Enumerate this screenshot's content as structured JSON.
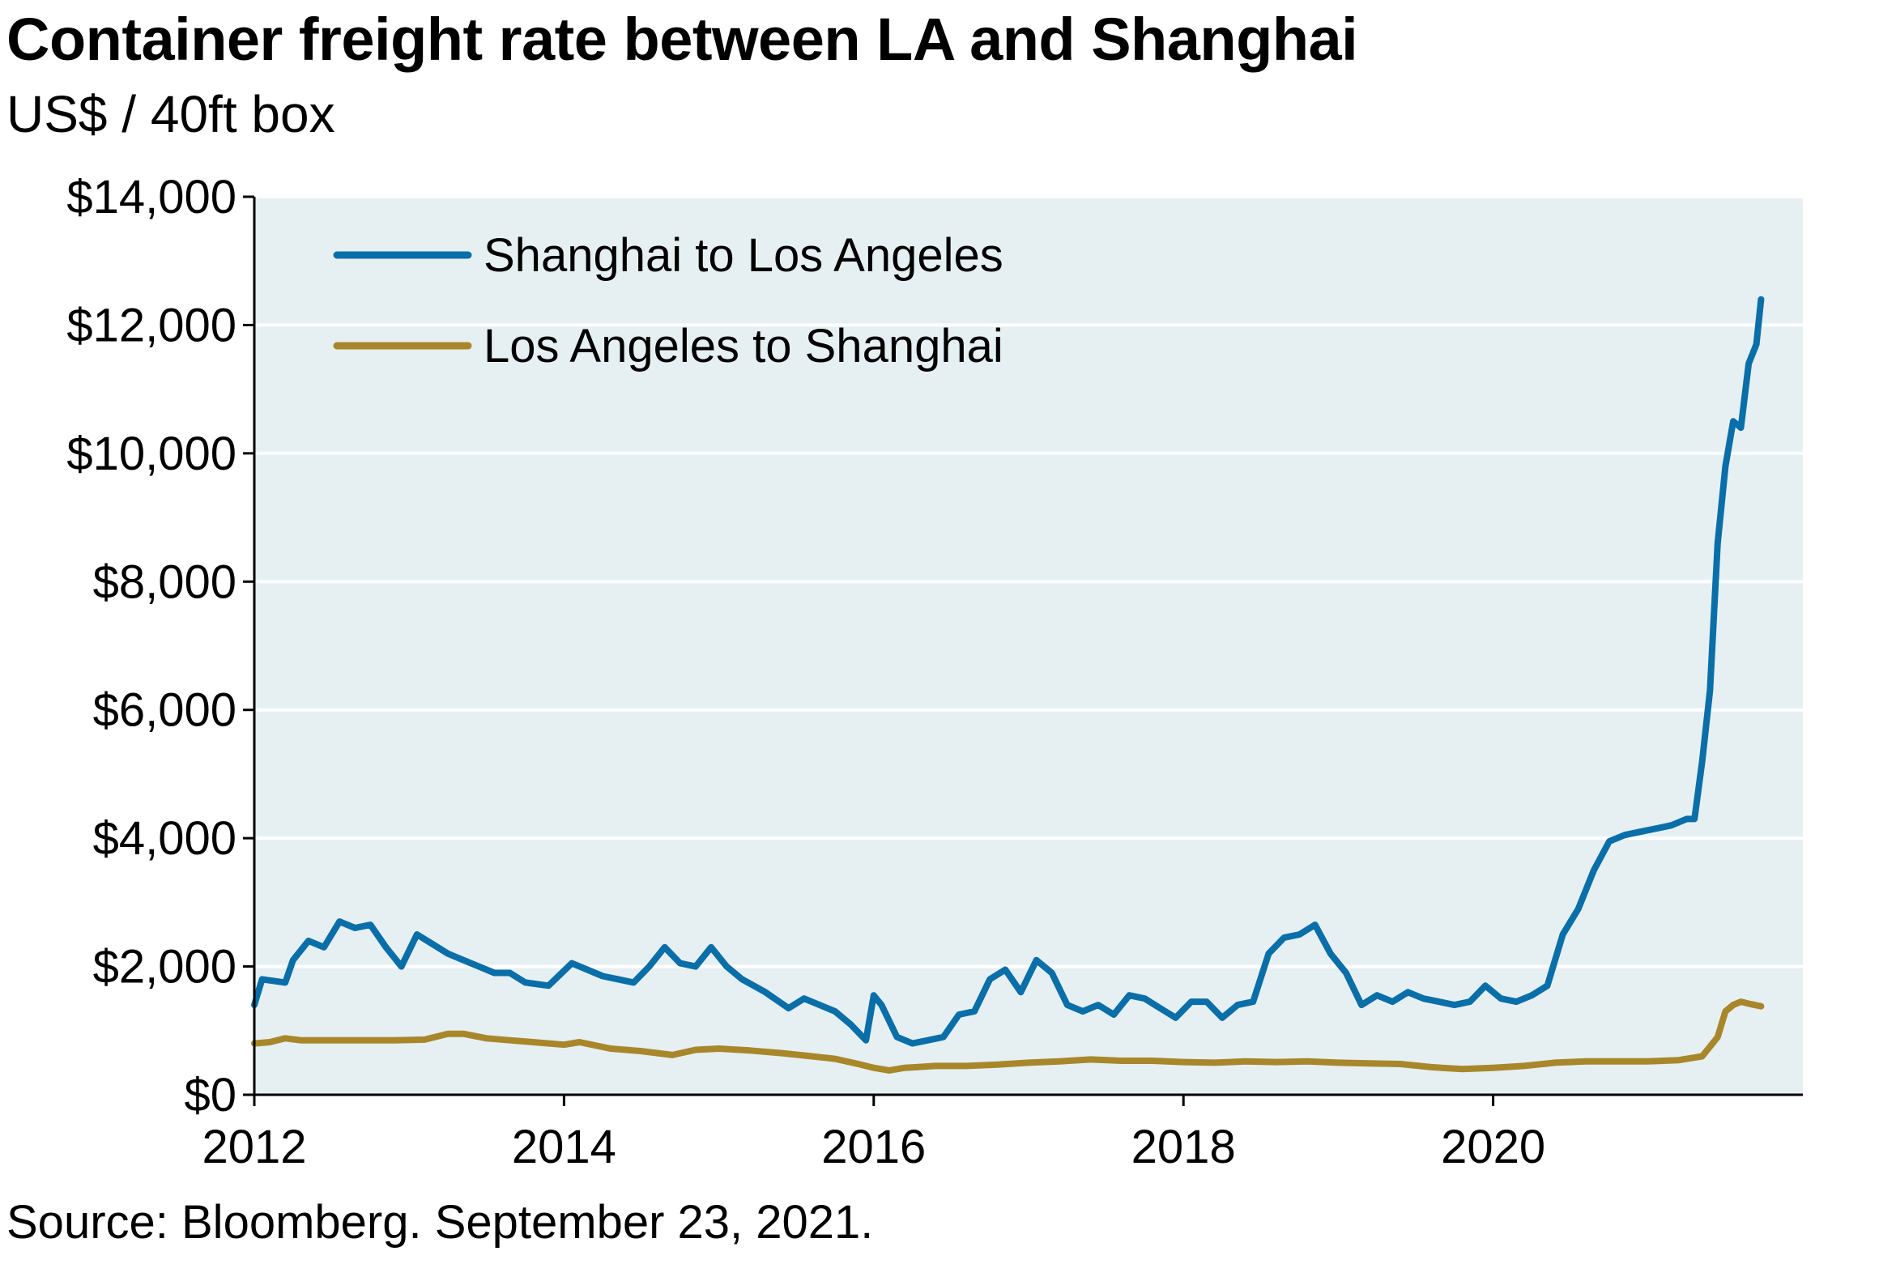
{
  "chart_data": {
    "type": "line",
    "title": "Container freight rate between LA and Shanghai",
    "subtitle": "US$ / 40ft box",
    "source": "Source: Bloomberg. September 23, 2021.",
    "xlabel": "",
    "ylabel": "",
    "xlim": [
      2012.0,
      2022.0
    ],
    "ylim": [
      0,
      14000
    ],
    "x_ticks": [
      2012,
      2014,
      2016,
      2018,
      2020
    ],
    "x_tick_labels": [
      "2012",
      "2014",
      "2016",
      "2018",
      "2020"
    ],
    "y_ticks": [
      0,
      2000,
      4000,
      6000,
      8000,
      10000,
      12000,
      14000
    ],
    "y_tick_labels": [
      "$0",
      "$2,000",
      "$4,000",
      "$6,000",
      "$8,000",
      "$10,000",
      "$12,000",
      "$14,000"
    ],
    "grid": "horizontal",
    "legend_position": "top-left",
    "colors": {
      "plot_background": "#e6f0f3",
      "grid": "#ffffff"
    },
    "series": [
      {
        "name": "Shanghai to Los Angeles",
        "color": "#0a6fa8",
        "x": [
          2012.0,
          2012.05,
          2012.2,
          2012.25,
          2012.35,
          2012.45,
          2012.55,
          2012.65,
          2012.75,
          2012.85,
          2012.95,
          2013.05,
          2013.15,
          2013.25,
          2013.35,
          2013.45,
          2013.55,
          2013.65,
          2013.75,
          2013.9,
          2014.05,
          2014.15,
          2014.25,
          2014.35,
          2014.45,
          2014.55,
          2014.65,
          2014.75,
          2014.85,
          2014.95,
          2015.05,
          2015.15,
          2015.3,
          2015.45,
          2015.55,
          2015.65,
          2015.75,
          2015.85,
          2015.95,
          2016.0,
          2016.05,
          2016.15,
          2016.25,
          2016.35,
          2016.45,
          2016.55,
          2016.65,
          2016.75,
          2016.85,
          2016.95,
          2017.05,
          2017.15,
          2017.25,
          2017.35,
          2017.45,
          2017.55,
          2017.65,
          2017.75,
          2017.85,
          2017.95,
          2018.05,
          2018.15,
          2018.25,
          2018.35,
          2018.45,
          2018.55,
          2018.65,
          2018.75,
          2018.85,
          2018.95,
          2019.05,
          2019.15,
          2019.25,
          2019.35,
          2019.45,
          2019.55,
          2019.65,
          2019.75,
          2019.85,
          2019.95,
          2020.05,
          2020.15,
          2020.25,
          2020.35,
          2020.45,
          2020.55,
          2020.65,
          2020.75,
          2020.85,
          2020.95,
          2021.05,
          2021.15,
          2021.25,
          2021.3,
          2021.35,
          2021.4,
          2021.45,
          2021.5,
          2021.55,
          2021.6,
          2021.65,
          2021.7,
          2021.73
        ],
        "values": [
          1400,
          1800,
          1750,
          2100,
          2400,
          2300,
          2700,
          2600,
          2650,
          2300,
          2000,
          2500,
          2350,
          2200,
          2100,
          2000,
          1900,
          1900,
          1750,
          1700,
          2050,
          1950,
          1850,
          1800,
          1750,
          2000,
          2300,
          2050,
          2000,
          2300,
          2000,
          1800,
          1600,
          1350,
          1500,
          1400,
          1300,
          1100,
          850,
          1550,
          1400,
          900,
          800,
          850,
          900,
          1250,
          1300,
          1800,
          1950,
          1600,
          2100,
          1900,
          1400,
          1300,
          1400,
          1250,
          1550,
          1500,
          1350,
          1200,
          1450,
          1450,
          1200,
          1400,
          1450,
          2200,
          2450,
          2500,
          2650,
          2200,
          1900,
          1400,
          1550,
          1450,
          1600,
          1500,
          1450,
          1400,
          1450,
          1700,
          1500,
          1450,
          1550,
          1700,
          2500,
          2900,
          3500,
          3950,
          4050,
          4100,
          4150,
          4200,
          4300,
          4300,
          5200,
          6300,
          8600,
          9800,
          10500,
          10400,
          11400,
          11700,
          12400
        ]
      },
      {
        "name": "Los Angeles to Shanghai",
        "color": "#a8872b",
        "x": [
          2012.0,
          2012.1,
          2012.2,
          2012.3,
          2012.5,
          2012.7,
          2012.9,
          2013.1,
          2013.25,
          2013.35,
          2013.5,
          2013.65,
          2013.8,
          2014.0,
          2014.1,
          2014.2,
          2014.3,
          2014.5,
          2014.7,
          2014.85,
          2015.0,
          2015.2,
          2015.4,
          2015.6,
          2015.75,
          2015.9,
          2016.0,
          2016.1,
          2016.2,
          2016.4,
          2016.6,
          2016.8,
          2017.0,
          2017.2,
          2017.4,
          2017.6,
          2017.8,
          2018.0,
          2018.2,
          2018.4,
          2018.6,
          2018.8,
          2019.0,
          2019.2,
          2019.4,
          2019.6,
          2019.8,
          2020.0,
          2020.2,
          2020.4,
          2020.6,
          2020.8,
          2021.0,
          2021.2,
          2021.35,
          2021.45,
          2021.5,
          2021.55,
          2021.6,
          2021.65,
          2021.73
        ],
        "values": [
          800,
          820,
          880,
          850,
          850,
          850,
          850,
          860,
          950,
          950,
          880,
          850,
          820,
          780,
          820,
          770,
          720,
          680,
          620,
          700,
          720,
          690,
          650,
          600,
          560,
          480,
          420,
          380,
          420,
          450,
          450,
          470,
          500,
          520,
          550,
          530,
          530,
          510,
          500,
          520,
          510,
          520,
          500,
          490,
          480,
          430,
          400,
          420,
          450,
          500,
          520,
          520,
          520,
          540,
          600,
          900,
          1300,
          1400,
          1450,
          1420,
          1380
        ]
      }
    ]
  }
}
